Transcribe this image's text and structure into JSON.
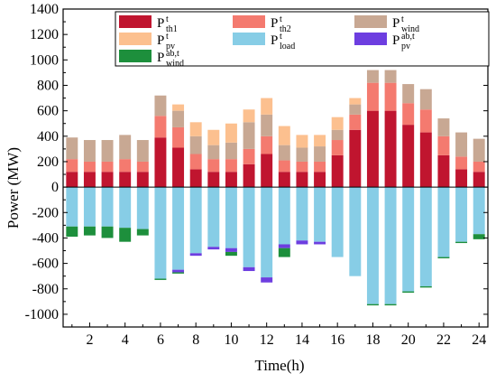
{
  "chart_data": {
    "type": "bar",
    "stacked": true,
    "xlabel": "Time(h)",
    "ylabel": "Power (MW)",
    "ylim": [
      -1100,
      1400
    ],
    "yticks": [
      -1000,
      -800,
      -600,
      -400,
      -200,
      0,
      200,
      400,
      600,
      800,
      1000,
      1200,
      1400
    ],
    "xticks": [
      2,
      4,
      6,
      8,
      10,
      12,
      14,
      16,
      18,
      20,
      22,
      24
    ],
    "x": [
      1,
      2,
      3,
      4,
      5,
      6,
      7,
      8,
      9,
      10,
      11,
      12,
      13,
      14,
      15,
      16,
      17,
      18,
      19,
      20,
      21,
      22,
      23,
      24
    ],
    "grid": false,
    "legend_position": "top",
    "series": [
      {
        "name": "P_th1^t",
        "legend": {
          "main": "P",
          "sup": "t",
          "sub": "th1"
        },
        "color": "#c0152f",
        "values": [
          120,
          120,
          120,
          120,
          120,
          390,
          310,
          140,
          120,
          120,
          180,
          260,
          120,
          120,
          120,
          250,
          450,
          600,
          600,
          490,
          430,
          250,
          140,
          120
        ]
      },
      {
        "name": "P_th2^t",
        "legend": {
          "main": "P",
          "sup": "t",
          "sub": "th2"
        },
        "color": "#f47a6f",
        "values": [
          100,
          80,
          80,
          100,
          80,
          170,
          160,
          120,
          100,
          100,
          120,
          140,
          90,
          80,
          80,
          120,
          120,
          220,
          220,
          170,
          180,
          150,
          100,
          80
        ]
      },
      {
        "name": "P_wind^t",
        "legend": {
          "main": "P",
          "sup": "t",
          "sub": "wind"
        },
        "color": "#c8a893",
        "values": [
          170,
          170,
          170,
          190,
          170,
          160,
          130,
          140,
          110,
          130,
          210,
          170,
          120,
          110,
          120,
          80,
          80,
          100,
          100,
          150,
          160,
          140,
          190,
          180
        ]
      },
      {
        "name": "P_pv^t",
        "legend": {
          "main": "P",
          "sup": "t",
          "sub": "pv"
        },
        "color": "#fcc08f",
        "values": [
          0,
          0,
          0,
          0,
          0,
          0,
          50,
          110,
          120,
          150,
          100,
          130,
          150,
          100,
          90,
          100,
          50,
          0,
          0,
          0,
          0,
          0,
          0,
          0
        ]
      },
      {
        "name": "P_load^t",
        "legend": {
          "main": "P",
          "sup": "t",
          "sub": "load"
        },
        "color": "#87cde6",
        "values": [
          -310,
          -310,
          -310,
          -320,
          -330,
          -720,
          -650,
          -520,
          -470,
          -480,
          -630,
          -710,
          -450,
          -420,
          -430,
          -550,
          -700,
          -920,
          -920,
          -820,
          -780,
          -550,
          -430,
          -370
        ]
      },
      {
        "name": "P_pv^ab,t",
        "legend": {
          "main": "P",
          "sup": "ab,t",
          "sub": "pv"
        },
        "color": "#6d3ee0",
        "values": [
          0,
          0,
          0,
          0,
          0,
          0,
          -20,
          -20,
          -20,
          -30,
          -30,
          -40,
          -30,
          -30,
          -20,
          0,
          0,
          0,
          0,
          0,
          0,
          0,
          0,
          0
        ]
      },
      {
        "name": "P_wind^ab,t",
        "legend": {
          "main": "P",
          "sup": "ab,t",
          "sub": "wind"
        },
        "color": "#1d8f3c",
        "values": [
          -80,
          -70,
          -90,
          -110,
          -50,
          -10,
          -10,
          0,
          0,
          -30,
          0,
          0,
          -70,
          0,
          0,
          0,
          0,
          -10,
          -10,
          -10,
          -10,
          -10,
          -10,
          -40
        ]
      }
    ]
  }
}
